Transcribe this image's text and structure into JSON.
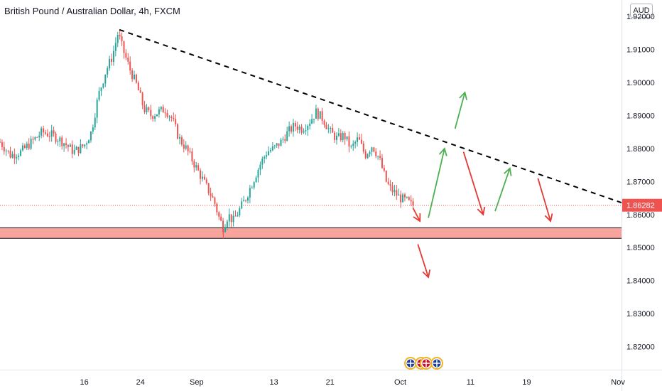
{
  "header": {
    "title": "British Pound / Australian Dollar, 4h, FXCM",
    "currency_badge": "AUD"
  },
  "colors": {
    "up": "#26a69a",
    "down": "#ef5350",
    "zone_fill": "#f8a39b",
    "trendline": "#000000",
    "arrow_up": "#4caf50",
    "arrow_down": "#e53935",
    "price_label_bg": "#ef5350"
  },
  "chart_data": {
    "type": "candlestick",
    "title": "British Pound / Australian Dollar, 4h, FXCM",
    "xlabel": "",
    "ylabel": "",
    "ylim": [
      1.813,
      1.925
    ],
    "y_ticks": [
      "1.92000",
      "1.91000",
      "1.90000",
      "1.89000",
      "1.88000",
      "1.87000",
      "1.86000",
      "1.85000",
      "1.84000",
      "1.83000",
      "1.82000"
    ],
    "y_tick_values": [
      1.92,
      1.91,
      1.9,
      1.89,
      1.88,
      1.87,
      1.86,
      1.85,
      1.84,
      1.83,
      1.82
    ],
    "x_ticks": [
      "16",
      "24",
      "Sep",
      "13",
      "21",
      "Oct",
      "11",
      "19",
      "Nov"
    ],
    "x_tick_days": [
      16,
      24,
      32,
      43,
      51,
      61,
      71,
      79,
      92
    ],
    "x_domain_days": [
      4.0,
      92.5
    ],
    "last_price": "1.86282",
    "last_price_value": 1.86282,
    "price_path": [
      [
        4.0,
        1.882
      ],
      [
        5.5,
        1.878
      ],
      [
        7.0,
        1.879
      ],
      [
        8.5,
        1.882
      ],
      [
        10.0,
        1.885
      ],
      [
        11.5,
        1.884
      ],
      [
        13.0,
        1.882
      ],
      [
        14.5,
        1.879
      ],
      [
        16.0,
        1.881
      ],
      [
        17.0,
        1.885
      ],
      [
        18.0,
        1.896
      ],
      [
        19.0,
        1.903
      ],
      [
        20.0,
        1.908
      ],
      [
        20.8,
        1.915
      ],
      [
        21.5,
        1.91
      ],
      [
        22.5,
        1.904
      ],
      [
        23.5,
        1.899
      ],
      [
        24.5,
        1.892
      ],
      [
        25.5,
        1.89
      ],
      [
        26.5,
        1.891
      ],
      [
        27.5,
        1.892
      ],
      [
        28.5,
        1.889
      ],
      [
        29.5,
        1.883
      ],
      [
        30.5,
        1.88
      ],
      [
        31.5,
        1.876
      ],
      [
        32.5,
        1.872
      ],
      [
        33.5,
        1.868
      ],
      [
        34.5,
        1.864
      ],
      [
        35.2,
        1.859
      ],
      [
        35.8,
        1.856
      ],
      [
        36.5,
        1.86
      ],
      [
        37.2,
        1.858
      ],
      [
        38.0,
        1.861
      ],
      [
        39.0,
        1.865
      ],
      [
        40.0,
        1.87
      ],
      [
        41.0,
        1.875
      ],
      [
        42.0,
        1.879
      ],
      [
        43.0,
        1.88
      ],
      [
        44.0,
        1.882
      ],
      [
        45.0,
        1.885
      ],
      [
        46.0,
        1.887
      ],
      [
        47.0,
        1.886
      ],
      [
        48.0,
        1.888
      ],
      [
        49.0,
        1.891
      ],
      [
        50.0,
        1.889
      ],
      [
        51.0,
        1.885
      ],
      [
        52.0,
        1.883
      ],
      [
        53.0,
        1.884
      ],
      [
        54.0,
        1.88
      ],
      [
        55.0,
        1.883
      ],
      [
        56.0,
        1.878
      ],
      [
        57.0,
        1.881
      ],
      [
        58.0,
        1.877
      ],
      [
        59.0,
        1.87
      ],
      [
        59.5,
        1.868
      ],
      [
        60.5,
        1.866
      ],
      [
        61.0,
        1.865
      ],
      [
        62.0,
        1.864
      ],
      [
        62.5,
        1.863
      ],
      [
        63.0,
        1.8628
      ]
    ],
    "support_zone": {
      "low": 1.8528,
      "high": 1.856
    },
    "support_extreme_wick": 1.8528,
    "trendline": {
      "start": [
        21.0,
        1.916
      ],
      "end": [
        92.5,
        1.8636
      ]
    },
    "annotations": [
      {
        "type": "arrow",
        "color": "arrow_down",
        "from": [
          62.8,
          1.862
        ],
        "to": [
          63.8,
          1.858
        ]
      },
      {
        "type": "arrow",
        "color": "arrow_down",
        "from": [
          63.5,
          1.851
        ],
        "to": [
          65.0,
          1.841
        ]
      },
      {
        "type": "arrow",
        "color": "arrow_up",
        "from": [
          65.0,
          1.859
        ],
        "to": [
          67.3,
          1.88
        ]
      },
      {
        "type": "arrow",
        "color": "arrow_up",
        "from": [
          68.8,
          1.886
        ],
        "to": [
          70.2,
          1.897
        ]
      },
      {
        "type": "arrow",
        "color": "arrow_down",
        "from": [
          70.0,
          1.879
        ],
        "to": [
          72.8,
          1.86
        ]
      },
      {
        "type": "arrow",
        "color": "arrow_up",
        "from": [
          74.5,
          1.861
        ],
        "to": [
          76.6,
          1.874
        ]
      },
      {
        "type": "arrow",
        "color": "arrow_down",
        "from": [
          80.6,
          1.871
        ],
        "to": [
          82.4,
          1.858
        ]
      }
    ],
    "grid": false,
    "legend": "none"
  }
}
